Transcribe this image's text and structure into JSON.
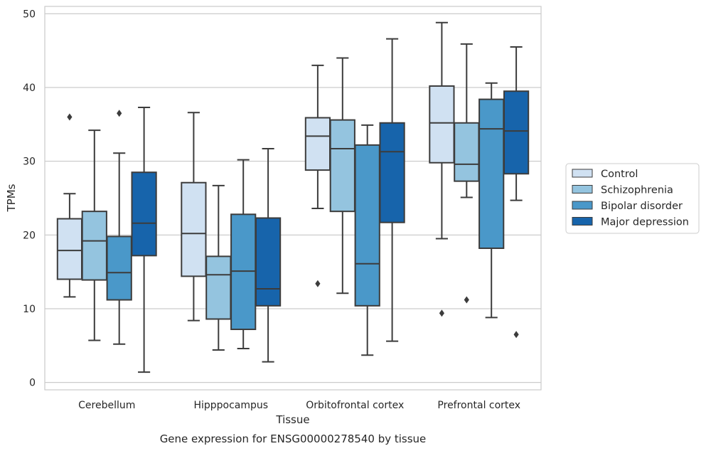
{
  "chart_data": {
    "type": "box",
    "xlabel": "Tissue",
    "ylabel": "TPMs",
    "caption": "Gene expression for ENSG00000278540 by tissue",
    "ylim": [
      -1,
      51
    ],
    "yticks": [
      0,
      10,
      20,
      30,
      40,
      50
    ],
    "grid": "horizontal",
    "legend_position": "right-center",
    "categories": [
      "Cerebellum",
      "Hipppocampus",
      "Orbitofrontal cortex",
      "Prefrontal cortex"
    ],
    "series": [
      {
        "name": "Control",
        "color": "#d0e1f2",
        "boxes": [
          {
            "whislo": 11.6,
            "q1": 14.0,
            "med": 17.9,
            "q3": 22.2,
            "whishi": 25.6,
            "fliers": [
              36.0
            ]
          },
          {
            "whislo": 8.4,
            "q1": 14.4,
            "med": 20.2,
            "q3": 27.1,
            "whishi": 36.6,
            "fliers": []
          },
          {
            "whislo": 23.6,
            "q1": 28.8,
            "med": 33.4,
            "q3": 35.9,
            "whishi": 43.0,
            "fliers": [
              13.4
            ]
          },
          {
            "whislo": 19.5,
            "q1": 29.8,
            "med": 35.2,
            "q3": 40.2,
            "whishi": 48.8,
            "fliers": [
              9.4
            ]
          }
        ]
      },
      {
        "name": "Schizophrenia",
        "color": "#94c4df",
        "boxes": [
          {
            "whislo": 5.7,
            "q1": 13.9,
            "med": 19.2,
            "q3": 23.2,
            "whishi": 34.2,
            "fliers": []
          },
          {
            "whislo": 4.4,
            "q1": 8.6,
            "med": 14.6,
            "q3": 17.1,
            "whishi": 26.7,
            "fliers": []
          },
          {
            "whislo": 12.1,
            "q1": 23.2,
            "med": 31.7,
            "q3": 35.6,
            "whishi": 44.0,
            "fliers": []
          },
          {
            "whislo": 25.1,
            "q1": 27.3,
            "med": 29.6,
            "q3": 35.2,
            "whishi": 45.9,
            "fliers": [
              11.2
            ]
          }
        ]
      },
      {
        "name": "Bipolar disorder",
        "color": "#4a98c9",
        "boxes": [
          {
            "whislo": 5.2,
            "q1": 11.2,
            "med": 14.9,
            "q3": 19.8,
            "whishi": 31.1,
            "fliers": [
              36.5
            ]
          },
          {
            "whislo": 4.6,
            "q1": 7.2,
            "med": 15.1,
            "q3": 22.8,
            "whishi": 30.2,
            "fliers": []
          },
          {
            "whislo": 3.7,
            "q1": 10.4,
            "med": 16.1,
            "q3": 32.2,
            "whishi": 34.9,
            "fliers": []
          },
          {
            "whislo": 8.8,
            "q1": 18.2,
            "med": 34.4,
            "q3": 38.4,
            "whishi": 40.6,
            "fliers": []
          }
        ]
      },
      {
        "name": "Major depression",
        "color": "#1764ab",
        "boxes": [
          {
            "whislo": 1.4,
            "q1": 17.2,
            "med": 21.6,
            "q3": 28.5,
            "whishi": 37.3,
            "fliers": []
          },
          {
            "whislo": 2.8,
            "q1": 10.4,
            "med": 12.7,
            "q3": 22.3,
            "whishi": 31.7,
            "fliers": []
          },
          {
            "whislo": 5.6,
            "q1": 21.7,
            "med": 31.3,
            "q3": 35.2,
            "whishi": 46.6,
            "fliers": []
          },
          {
            "whislo": 24.7,
            "q1": 28.3,
            "med": 34.1,
            "q3": 39.5,
            "whishi": 45.5,
            "fliers": [
              6.5
            ]
          }
        ]
      }
    ]
  }
}
